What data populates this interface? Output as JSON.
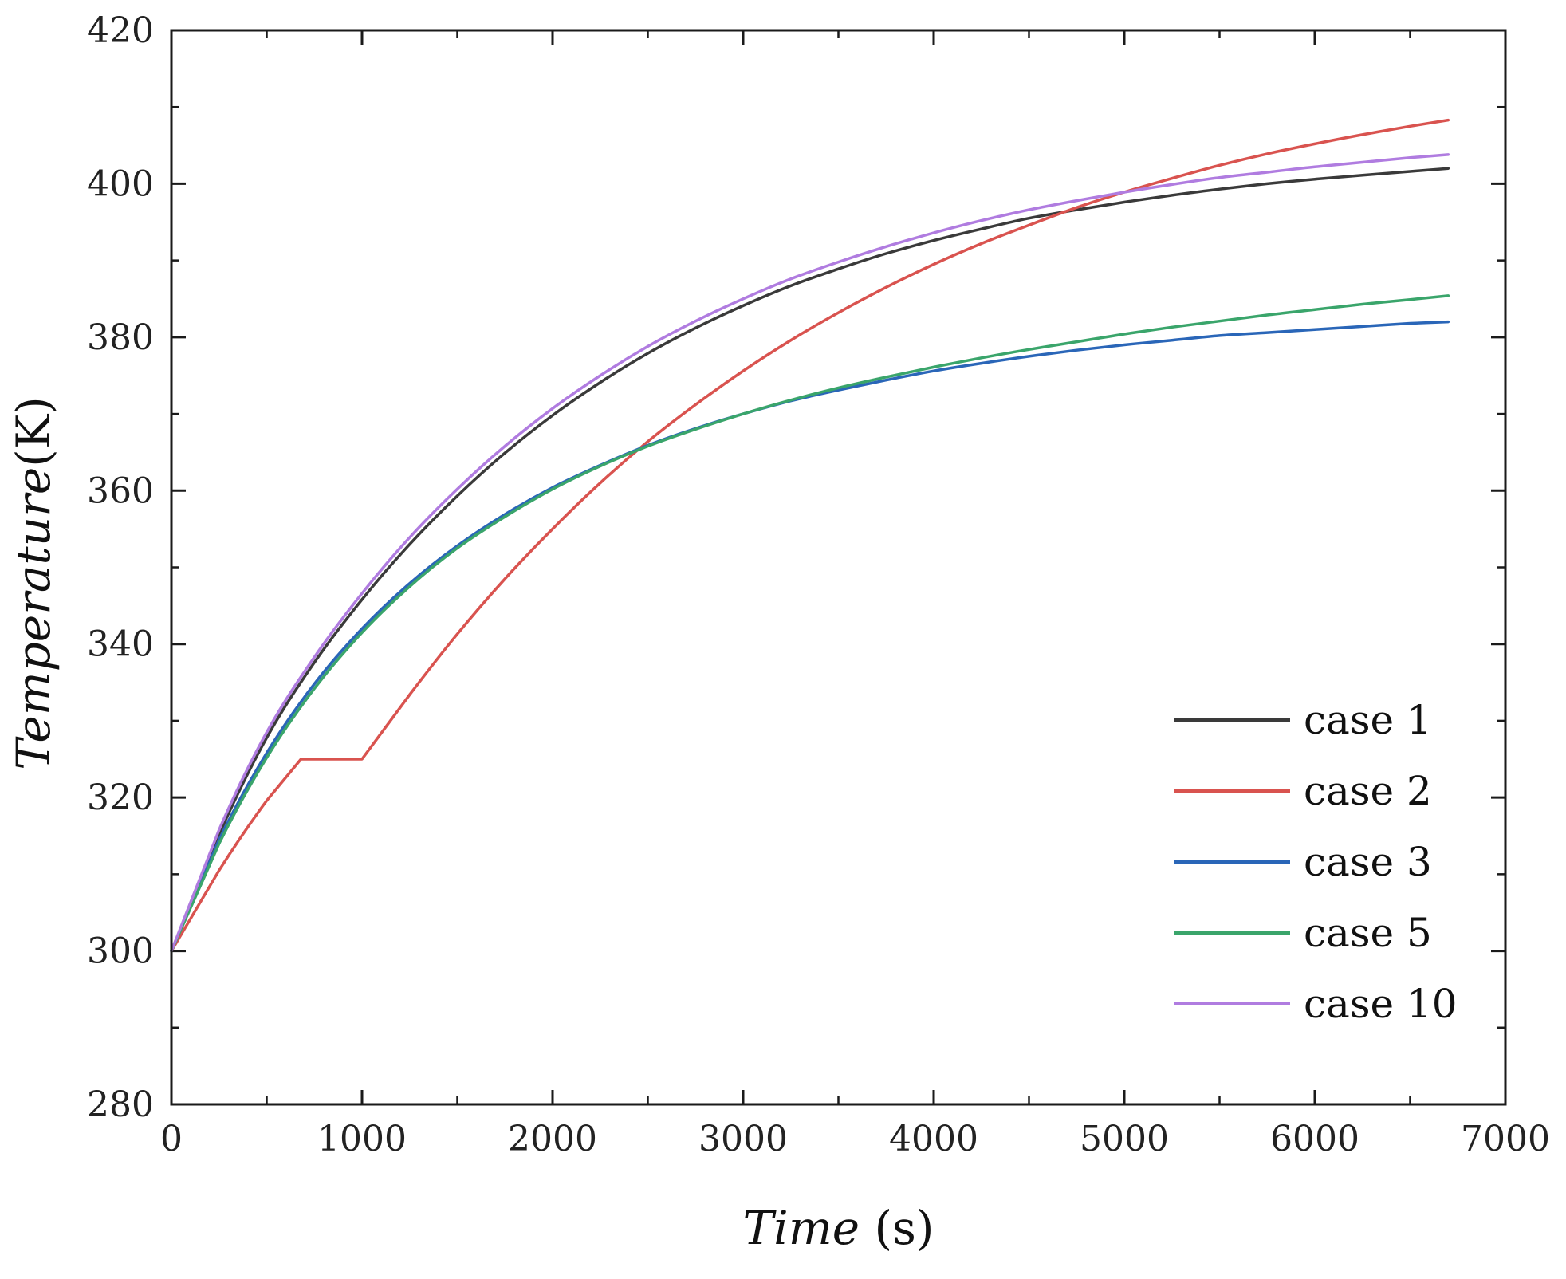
{
  "chart_data": {
    "type": "line",
    "xlabel_italic": "Time",
    "xlabel_rest": " (s)",
    "ylabel_italic": "Temperature",
    "ylabel_rest": "(K)",
    "xlim": [
      0,
      7000
    ],
    "ylim": [
      280,
      420
    ],
    "xticks": [
      0,
      1000,
      2000,
      3000,
      4000,
      5000,
      6000,
      7000
    ],
    "yticks": [
      280,
      300,
      320,
      340,
      360,
      380,
      400,
      420
    ],
    "x_minor_step": 500,
    "y_minor_step": 10,
    "grid": false,
    "legend_position": "bottom-right",
    "series": [
      {
        "name": "case 1",
        "color": "#3a3a3a",
        "x": [
          0,
          250,
          500,
          750,
          1000,
          1250,
          1500,
          1750,
          2000,
          2250,
          2500,
          2750,
          3000,
          3250,
          3500,
          3750,
          4000,
          4250,
          4500,
          4750,
          5000,
          5250,
          5500,
          5750,
          6000,
          6250,
          6500,
          6700
        ],
        "y": [
          300,
          315.2,
          327.8,
          337.6,
          345.8,
          353.0,
          359.3,
          364.9,
          369.8,
          374.1,
          377.9,
          381.2,
          384.1,
          386.7,
          388.9,
          390.9,
          392.6,
          394.1,
          395.5,
          396.6,
          397.6,
          398.5,
          399.3,
          400.0,
          400.6,
          401.1,
          401.6,
          402.0
        ]
      },
      {
        "name": "case 2",
        "color": "#d9534f",
        "x": [
          0,
          250,
          500,
          680,
          1000,
          1250,
          1500,
          1750,
          2000,
          2250,
          2500,
          2750,
          3000,
          3250,
          3500,
          3750,
          4000,
          4250,
          4500,
          4750,
          5000,
          5250,
          5500,
          5750,
          6000,
          6250,
          6500,
          6700
        ],
        "y": [
          300,
          310.5,
          319.6,
          325,
          325,
          333.4,
          341.3,
          348.5,
          355.0,
          361.0,
          366.4,
          371.2,
          375.6,
          379.6,
          383.2,
          386.5,
          389.5,
          392.2,
          394.6,
          396.9,
          398.9,
          400.7,
          402.4,
          403.9,
          405.2,
          406.4,
          407.5,
          408.3
        ]
      },
      {
        "name": "case 3",
        "color": "#2a66b8",
        "x": [
          0,
          250,
          500,
          750,
          1000,
          1250,
          1500,
          1750,
          2000,
          2250,
          2500,
          2750,
          3000,
          3250,
          3500,
          3750,
          4000,
          4250,
          4500,
          4750,
          5000,
          5250,
          5500,
          5750,
          6000,
          6250,
          6500,
          6700
        ],
        "y": [
          300,
          314.5,
          325.8,
          334.8,
          342.0,
          347.9,
          352.8,
          356.9,
          360.4,
          363.3,
          365.9,
          368.1,
          370.0,
          371.7,
          373.1,
          374.4,
          375.6,
          376.6,
          377.5,
          378.3,
          379.0,
          379.6,
          380.2,
          380.6,
          381.0,
          381.4,
          381.8,
          382.0
        ]
      },
      {
        "name": "case 5",
        "color": "#3aa56b",
        "x": [
          0,
          250,
          500,
          750,
          1000,
          1250,
          1500,
          1750,
          2000,
          2250,
          2500,
          2750,
          3000,
          3250,
          3500,
          3750,
          4000,
          4250,
          4500,
          4750,
          5000,
          5250,
          5500,
          5750,
          6000,
          6250,
          6500,
          6700
        ],
        "y": [
          300,
          314.0,
          325.2,
          334.2,
          341.5,
          347.5,
          352.5,
          356.6,
          360.2,
          363.2,
          365.8,
          368.0,
          370.0,
          371.8,
          373.4,
          374.8,
          376.1,
          377.3,
          378.4,
          379.4,
          380.4,
          381.3,
          382.1,
          382.9,
          383.6,
          384.3,
          384.9,
          385.4
        ]
      },
      {
        "name": "case 10",
        "color": "#b07ce0",
        "x": [
          0,
          250,
          500,
          750,
          1000,
          1250,
          1500,
          1750,
          2000,
          2250,
          2500,
          2750,
          3000,
          3250,
          3500,
          3750,
          4000,
          4250,
          4500,
          4750,
          5000,
          5250,
          5500,
          5750,
          6000,
          6250,
          6500,
          6700
        ],
        "y": [
          300,
          315.8,
          328.5,
          338.3,
          346.6,
          353.9,
          360.2,
          365.8,
          370.7,
          375.0,
          378.8,
          382.1,
          385.0,
          387.6,
          389.8,
          391.8,
          393.6,
          395.2,
          396.6,
          397.8,
          398.9,
          399.9,
          400.8,
          401.5,
          402.2,
          402.8,
          403.4,
          403.8
        ]
      }
    ]
  }
}
